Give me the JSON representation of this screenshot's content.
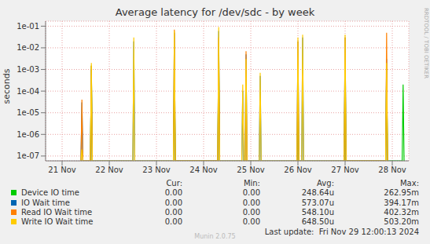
{
  "chart_data": {
    "type": "line",
    "title": "Average latency for /dev/sdc - by week",
    "y_label": "seconds",
    "log": "y",
    "grid": true,
    "x": [
      21.4,
      21.42,
      21.44,
      21.6,
      21.62,
      21.64,
      22.5,
      22.52,
      22.54,
      23.36,
      23.38,
      23.4,
      24.3,
      24.32,
      24.34,
      24.81,
      24.83,
      24.85,
      24.88,
      24.9,
      24.92,
      25.18,
      25.2,
      25.22,
      25.98,
      26.0,
      26.02,
      26.08,
      26.1,
      26.12,
      26.98,
      27.0,
      27.02,
      27.86,
      27.88,
      27.9,
      28.21,
      28.23,
      28.25
    ],
    "xlim": [
      20.65,
      28.35
    ],
    "xticks": [
      {
        "value": 21,
        "label": "21 Nov"
      },
      {
        "value": 22,
        "label": "22 Nov"
      },
      {
        "value": 23,
        "label": "23 Nov"
      },
      {
        "value": 24,
        "label": "24 Nov"
      },
      {
        "value": 25,
        "label": "25 Nov"
      },
      {
        "value": 26,
        "label": "26 Nov"
      },
      {
        "value": 27,
        "label": "27 Nov"
      },
      {
        "value": 28,
        "label": "28 Nov"
      }
    ],
    "ylim": [
      6e-08,
      0.17
    ],
    "yticks": [
      {
        "value": 1e-07,
        "label": "1e-07"
      },
      {
        "value": 1e-06,
        "label": "1e-06"
      },
      {
        "value": 1e-05,
        "label": "1e-05"
      },
      {
        "value": 0.0001,
        "label": "1e-04"
      },
      {
        "value": 0.001,
        "label": "1e-03"
      },
      {
        "value": 0.01,
        "label": "1e-02"
      },
      {
        "value": 0.1,
        "label": "1e-01"
      }
    ],
    "legend_columns": [
      "Cur:",
      "Min:",
      "Avg:",
      "Max:"
    ],
    "series": [
      {
        "name": "Device IO time",
        "color": "#00cc00",
        "cur": "0.00",
        "min": "0.00",
        "avg": "248.64u",
        "max": "262.95m",
        "values": [
          null,
          null,
          null,
          6e-08,
          0.0015,
          6e-08,
          null,
          null,
          null,
          6e-08,
          0.001,
          6e-08,
          6e-08,
          0.005,
          6e-08,
          null,
          null,
          null,
          null,
          null,
          null,
          null,
          null,
          null,
          6e-08,
          0.0001,
          6e-08,
          null,
          null,
          null,
          6e-08,
          0.002,
          6e-08,
          6e-08,
          0.001,
          6e-08,
          6e-08,
          0.0002,
          6e-08
        ]
      },
      {
        "name": "IO Wait time",
        "color": "#0066b3",
        "cur": "0.00",
        "min": "0.00",
        "avg": "573.07u",
        "max": "394.17m",
        "values": [
          6e-08,
          3e-05,
          6e-08,
          6e-08,
          0.001,
          6e-08,
          6e-08,
          0.02,
          6e-08,
          6e-08,
          0.05,
          6e-08,
          6e-08,
          0.06,
          6e-08,
          6e-08,
          0.0001,
          6e-08,
          6e-08,
          0.005,
          6e-08,
          6e-08,
          0.0005,
          6e-08,
          6e-08,
          0.02,
          6e-08,
          6e-08,
          0.03,
          6e-08,
          6e-08,
          0.03,
          6e-08,
          6e-08,
          0.003,
          6e-08,
          null,
          null,
          null
        ]
      },
      {
        "name": "Read IO Wait time",
        "color": "#ff8000",
        "cur": "0.00",
        "min": "0.00",
        "avg": "548.10u",
        "max": "402.32m",
        "values": [
          6e-08,
          4e-05,
          6e-08,
          6e-08,
          0.0015,
          6e-08,
          null,
          null,
          null,
          6e-08,
          0.07,
          6e-08,
          6e-08,
          0.03,
          6e-08,
          null,
          null,
          null,
          6e-08,
          0.007,
          6e-08,
          null,
          null,
          null,
          6e-08,
          0.02,
          6e-08,
          null,
          null,
          null,
          6e-08,
          0.03,
          6e-08,
          6e-08,
          0.05,
          6e-08,
          null,
          null,
          null
        ]
      },
      {
        "name": "Write IO Wait time",
        "color": "#ffcc00",
        "cur": "0.00",
        "min": "0.00",
        "avg": "648.50u",
        "max": "503.20m",
        "values": [
          6e-08,
          2e-07,
          6e-08,
          6e-08,
          0.002,
          6e-08,
          6e-08,
          0.03,
          6e-08,
          6e-08,
          0.06,
          6e-08,
          6e-08,
          0.09,
          6e-08,
          6e-08,
          0.0002,
          6e-08,
          6e-08,
          0.003,
          6e-08,
          6e-08,
          0.0007,
          6e-08,
          6e-08,
          0.03,
          6e-08,
          6e-08,
          0.04,
          6e-08,
          6e-08,
          0.04,
          6e-08,
          6e-08,
          0.002,
          6e-08,
          null,
          null,
          null
        ]
      }
    ],
    "last_update": "Last update:  Fri Nov 29 12:00:13 2024",
    "footer": "Munin 2.0.75",
    "watermark": "RRDTOOL / TOBI OETIKER"
  }
}
